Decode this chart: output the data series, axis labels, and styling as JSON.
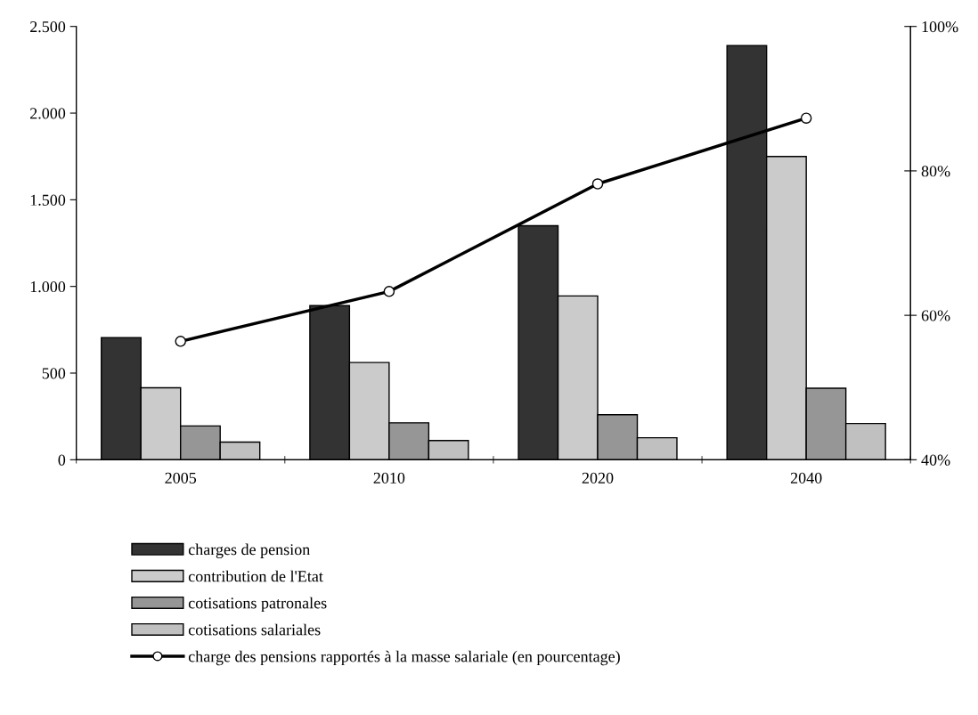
{
  "chart_data": {
    "type": "bar",
    "categories": [
      "2005",
      "2010",
      "2020",
      "2040"
    ],
    "series": [
      {
        "name": "charges de pension",
        "color": "#333333",
        "values": [
          705,
          889,
          1350,
          2390
        ]
      },
      {
        "name": "contribution de l'Etat",
        "color": "#cbcbcb",
        "values": [
          415,
          561,
          945,
          1750
        ]
      },
      {
        "name": "cotisations patronales",
        "color": "#969696",
        "values": [
          195,
          213,
          260,
          413
        ]
      },
      {
        "name": "cotisations salariales",
        "color": "#c0c0c0",
        "values": [
          102,
          111,
          127,
          209
        ]
      },
      {
        "name": "charge des pensions rapportés à la masse salariale (en pourcentage)",
        "color": "#000000",
        "type": "line",
        "axis": "y2",
        "values": [
          56.4,
          63.3,
          78.2,
          87.3
        ]
      }
    ],
    "ylim": [
      0,
      2500
    ],
    "yticks": [
      0,
      500,
      {
        "value": 1000,
        "label": "1.000"
      },
      {
        "value": 1500,
        "label": "1.500"
      },
      {
        "value": 2000,
        "label": "2.000"
      },
      {
        "value": 2500,
        "label": "2.500"
      }
    ],
    "y2lim": [
      40,
      100
    ],
    "y2ticks": [
      {
        "value": 40,
        "label": "40%"
      },
      {
        "value": 60,
        "label": "60%"
      },
      {
        "value": 80,
        "label": "80%"
      },
      {
        "value": 100,
        "label": "100%"
      }
    ],
    "marker": "circle",
    "line_style": "solid",
    "grid": false,
    "legend": "bottom"
  }
}
